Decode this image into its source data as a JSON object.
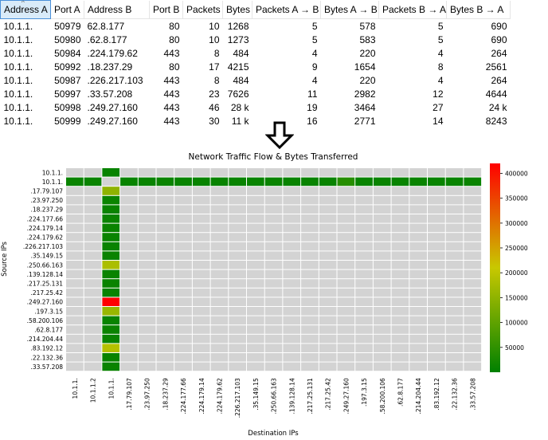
{
  "table": {
    "columns": [
      "Address A",
      "Port A",
      "Address B",
      "Port B",
      "Packets",
      "Bytes",
      "Packets A → B",
      "Bytes A → B",
      "Packets B → A",
      "Bytes B → A"
    ],
    "rows": [
      [
        "10.1.1.",
        "50979",
        "62.8.177",
        "80",
        "10",
        "1268",
        "5",
        "578",
        "5",
        "690"
      ],
      [
        "10.1.1.",
        "50980",
        ".62.8.177",
        "80",
        "10",
        "1273",
        "5",
        "583",
        "5",
        "690"
      ],
      [
        "10.1.1.",
        "50984",
        ".224.179.62",
        "443",
        "8",
        "484",
        "4",
        "220",
        "4",
        "264"
      ],
      [
        "10.1.1.",
        "50992",
        ".18.237.29",
        "80",
        "17",
        "4215",
        "9",
        "1654",
        "8",
        "2561"
      ],
      [
        "10.1.1.",
        "50987",
        ".226.217.103",
        "443",
        "8",
        "484",
        "4",
        "220",
        "4",
        "264"
      ],
      [
        "10.1.1.",
        "50997",
        ".33.57.208",
        "443",
        "23",
        "7626",
        "11",
        "2982",
        "12",
        "4644"
      ],
      [
        "10.1.1.",
        "50998",
        ".249.27.160",
        "443",
        "46",
        "28 k",
        "19",
        "3464",
        "27",
        "24 k"
      ],
      [
        "10.1.1.",
        "50999",
        ".249.27.160",
        "443",
        "30",
        "11 k",
        "16",
        "2771",
        "14",
        "8243"
      ]
    ]
  },
  "arrow": {
    "icon": "down-arrow-icon"
  },
  "chart_data": {
    "type": "heatmap",
    "title": "Network Traffic Flow & Bytes Transferred",
    "xlabel": "Destination IPs",
    "ylabel": "Source IPs",
    "x_categories": [
      "10.1.1.",
      "10.1.1.2",
      "10.1.1.",
      ".17.79.107",
      ".23.97.250",
      ".18.237.29",
      ".224.177.66",
      ".224.179.14",
      ".224.179.62",
      ".226.217.103",
      ".35.149.15",
      ".250.66.163",
      ".139.128.14",
      ".217.25.131",
      ".217.25.42",
      ".249.27.160",
      ".197.3.15",
      ".58.200.106",
      ".62.8.177",
      ".214.204.44",
      ".83.192.12",
      ".22.132.36",
      ".33.57.208"
    ],
    "y_categories": [
      "10.1.1.",
      "10.1.1.",
      ".17.79.107",
      ".23.97.250",
      ".18.237.29",
      ".224.177.66",
      ".224.179.14",
      ".224.179.62",
      ".226.217.103",
      ".35.149.15",
      ".250.66.163",
      ".139.128.14",
      ".217.25.131",
      ".217.25.42",
      ".249.27.160",
      ".197.3.15",
      ".58.200.106",
      ".62.8.177",
      ".214.204.44",
      ".83.192.12",
      ".22.132.36",
      ".33.57.208"
    ],
    "cells": [
      {
        "row": 0,
        "col": 2,
        "value": 8000
      },
      {
        "row": 1,
        "col": 0,
        "value": 9000
      },
      {
        "row": 1,
        "col": 1,
        "value": 9000
      },
      {
        "row": 1,
        "col": 3,
        "value": 8000
      },
      {
        "row": 1,
        "col": 4,
        "value": 8000
      },
      {
        "row": 1,
        "col": 5,
        "value": 10000
      },
      {
        "row": 1,
        "col": 6,
        "value": 8000
      },
      {
        "row": 1,
        "col": 7,
        "value": 8000
      },
      {
        "row": 1,
        "col": 8,
        "value": 8000
      },
      {
        "row": 1,
        "col": 9,
        "value": 8000
      },
      {
        "row": 1,
        "col": 10,
        "value": 8000
      },
      {
        "row": 1,
        "col": 11,
        "value": 9000
      },
      {
        "row": 1,
        "col": 12,
        "value": 8000
      },
      {
        "row": 1,
        "col": 13,
        "value": 8000
      },
      {
        "row": 1,
        "col": 14,
        "value": 8000
      },
      {
        "row": 1,
        "col": 15,
        "value": 40000
      },
      {
        "row": 1,
        "col": 16,
        "value": 8000
      },
      {
        "row": 1,
        "col": 17,
        "value": 9000
      },
      {
        "row": 1,
        "col": 18,
        "value": 8000
      },
      {
        "row": 1,
        "col": 19,
        "value": 9000
      },
      {
        "row": 1,
        "col": 20,
        "value": 8000
      },
      {
        "row": 1,
        "col": 21,
        "value": 8000
      },
      {
        "row": 1,
        "col": 22,
        "value": 10000
      },
      {
        "row": 2,
        "col": 2,
        "value": 150000
      },
      {
        "row": 3,
        "col": 2,
        "value": 12000
      },
      {
        "row": 4,
        "col": 2,
        "value": 9000
      },
      {
        "row": 5,
        "col": 2,
        "value": 9000
      },
      {
        "row": 6,
        "col": 2,
        "value": 9000
      },
      {
        "row": 7,
        "col": 2,
        "value": 9000
      },
      {
        "row": 8,
        "col": 2,
        "value": 9000
      },
      {
        "row": 9,
        "col": 2,
        "value": 9000
      },
      {
        "row": 10,
        "col": 2,
        "value": 180000
      },
      {
        "row": 11,
        "col": 2,
        "value": 9000
      },
      {
        "row": 12,
        "col": 2,
        "value": 9000
      },
      {
        "row": 13,
        "col": 2,
        "value": 9000
      },
      {
        "row": 14,
        "col": 2,
        "value": 420000
      },
      {
        "row": 15,
        "col": 2,
        "value": 160000
      },
      {
        "row": 16,
        "col": 2,
        "value": 9000
      },
      {
        "row": 17,
        "col": 2,
        "value": 10000
      },
      {
        "row": 18,
        "col": 2,
        "value": 9000
      },
      {
        "row": 19,
        "col": 2,
        "value": 190000
      },
      {
        "row": 20,
        "col": 2,
        "value": 9000
      },
      {
        "row": 21,
        "col": 2,
        "value": 9000
      }
    ],
    "colorbar": {
      "range": [
        0,
        420000
      ],
      "ticks": [
        "50000",
        "100000",
        "150000",
        "200000",
        "250000",
        "300000",
        "350000",
        "400000"
      ],
      "colors": [
        "#008000",
        "#c8c800",
        "#ff0000"
      ]
    },
    "empty_cell_color": "#d3d3d3",
    "grid": true,
    "legend": "colorbar-right"
  }
}
